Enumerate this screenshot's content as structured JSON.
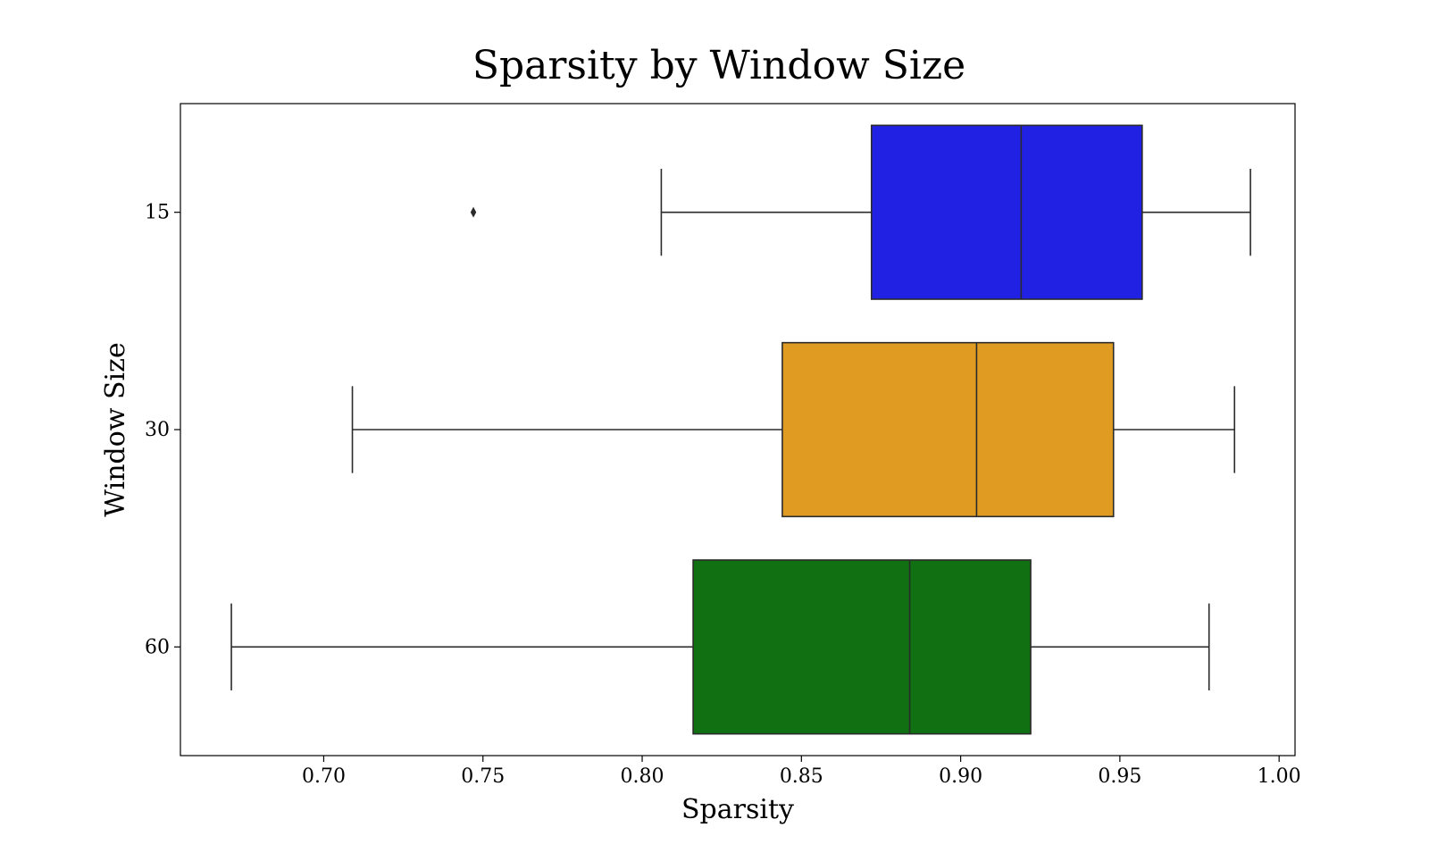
{
  "chart_data": {
    "type": "boxplot",
    "orientation": "horizontal",
    "title": "Sparsity by Window Size",
    "xlabel": "Sparsity",
    "ylabel": "Window Size",
    "xlim": [
      0.655,
      1.005
    ],
    "xticks": [
      0.7,
      0.75,
      0.8,
      0.85,
      0.9,
      0.95,
      1.0
    ],
    "xtick_labels": [
      "0.70",
      "0.75",
      "0.80",
      "0.85",
      "0.90",
      "0.95",
      "1.00"
    ],
    "categories": [
      "15",
      "30",
      "60"
    ],
    "grid": false,
    "boxes": [
      {
        "category": "15",
        "color": "#2121e3",
        "whisker_low": 0.806,
        "q1": 0.872,
        "median": 0.919,
        "q3": 0.957,
        "whisker_high": 0.991,
        "outliers": [
          0.747
        ]
      },
      {
        "category": "30",
        "color": "#e09c22",
        "whisker_low": 0.709,
        "q1": 0.844,
        "median": 0.905,
        "q3": 0.948,
        "whisker_high": 0.986,
        "outliers": []
      },
      {
        "category": "60",
        "color": "#117112",
        "whisker_low": 0.671,
        "q1": 0.816,
        "median": 0.884,
        "q3": 0.922,
        "whisker_high": 0.978,
        "outliers": []
      }
    ]
  }
}
